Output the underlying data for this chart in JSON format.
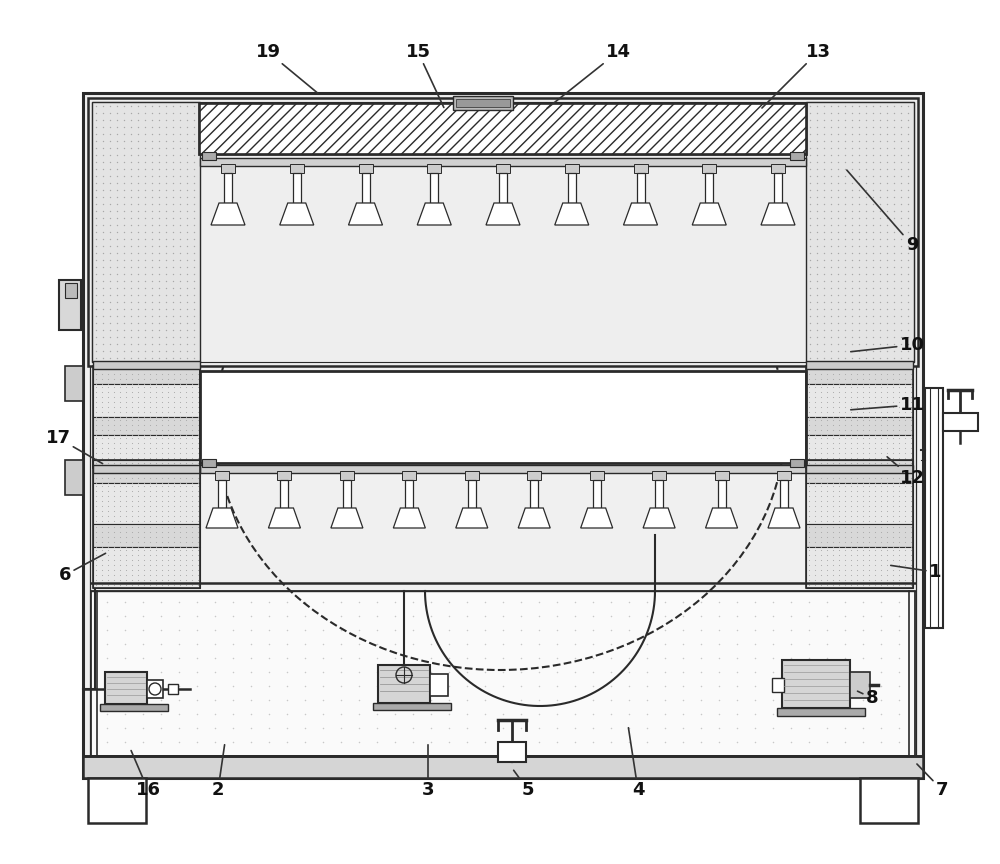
{
  "bg_color": "#ffffff",
  "lc": "#2a2a2a",
  "figsize": [
    10.0,
    8.64
  ],
  "dpi": 100,
  "annotations": [
    [
      19,
      268,
      52,
      320,
      95
    ],
    [
      15,
      418,
      52,
      445,
      110
    ],
    [
      14,
      618,
      52,
      545,
      110
    ],
    [
      13,
      818,
      52,
      760,
      110
    ],
    [
      9,
      912,
      245,
      845,
      168
    ],
    [
      10,
      912,
      345,
      848,
      352
    ],
    [
      11,
      912,
      405,
      848,
      410
    ],
    [
      12,
      912,
      478,
      885,
      455
    ],
    [
      17,
      58,
      438,
      105,
      465
    ],
    [
      6,
      65,
      575,
      108,
      552
    ],
    [
      1,
      935,
      572,
      888,
      565
    ],
    [
      8,
      872,
      698,
      855,
      690
    ],
    [
      16,
      148,
      790,
      130,
      748
    ],
    [
      2,
      218,
      790,
      225,
      742
    ],
    [
      3,
      428,
      790,
      428,
      742
    ],
    [
      5,
      528,
      790,
      512,
      768
    ],
    [
      4,
      638,
      790,
      628,
      725
    ],
    [
      7,
      942,
      790,
      915,
      762
    ]
  ]
}
